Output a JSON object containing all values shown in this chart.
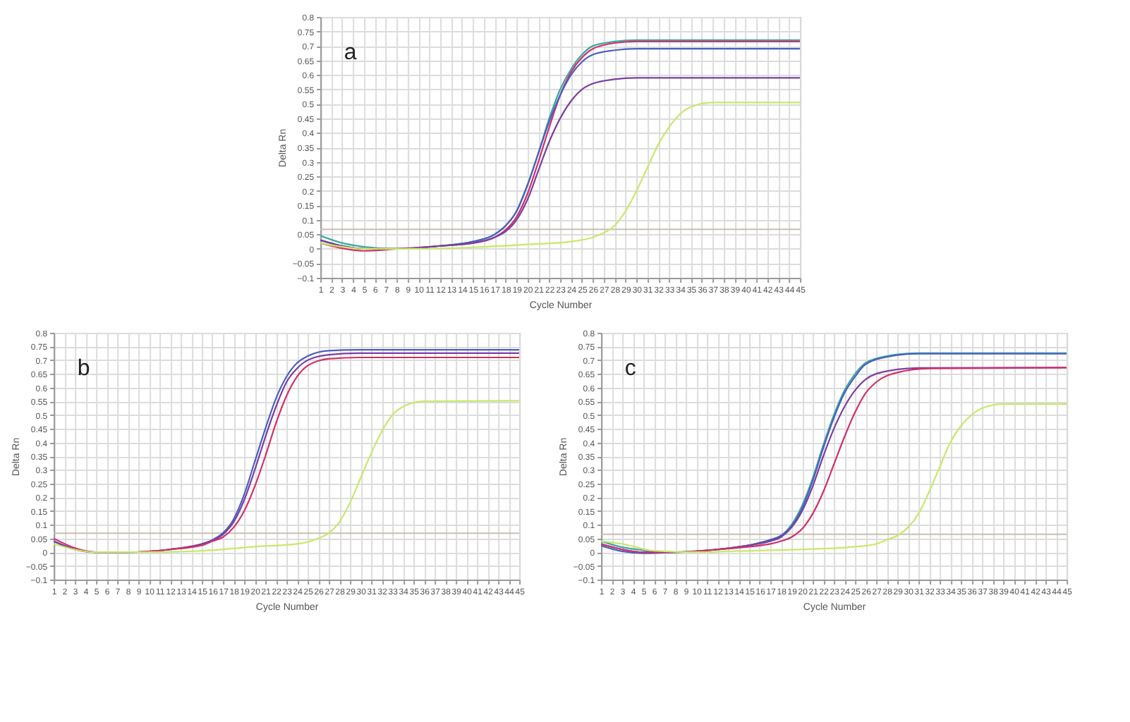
{
  "chart_data": [
    {
      "type": "line",
      "title": "a",
      "xlabel": "Cycle Number",
      "ylabel": "Delta Rn",
      "xlim": [
        1,
        45
      ],
      "ylim": [
        -0.1,
        0.8
      ],
      "xticks": [
        1,
        2,
        3,
        4,
        5,
        6,
        7,
        8,
        9,
        10,
        11,
        12,
        13,
        14,
        15,
        16,
        17,
        18,
        19,
        20,
        21,
        22,
        23,
        24,
        25,
        26,
        27,
        28,
        29,
        30,
        31,
        32,
        33,
        34,
        35,
        36,
        37,
        38,
        39,
        40,
        41,
        42,
        43,
        44,
        45
      ],
      "yticks": [
        -0.1,
        -0.05,
        0,
        0.05,
        0.1,
        0.15,
        0.2,
        0.25,
        0.3,
        0.35,
        0.4,
        0.45,
        0.5,
        0.55,
        0.6,
        0.65,
        0.7,
        0.75,
        0.8
      ],
      "grid": true,
      "marker": "none",
      "line_style": "solid",
      "ref_lines": [
        {
          "axis": "y",
          "value": 0.067,
          "color": "#c9bfb4"
        }
      ],
      "series": [
        {
          "color": "#3aa89e",
          "x": [
            1,
            3,
            5,
            8,
            12,
            15,
            17,
            18,
            19,
            20,
            21,
            22,
            23,
            24,
            25,
            26,
            28,
            30,
            45
          ],
          "values": [
            0.045,
            0.02,
            0.007,
            0,
            0.01,
            0.025,
            0.05,
            0.08,
            0.13,
            0.22,
            0.33,
            0.45,
            0.55,
            0.62,
            0.67,
            0.7,
            0.715,
            0.72,
            0.72
          ]
        },
        {
          "color": "#d0306a",
          "x": [
            1,
            3,
            5,
            8,
            12,
            15,
            17,
            18,
            19,
            20,
            21,
            22,
            23,
            24,
            25,
            26,
            28,
            30,
            45
          ],
          "values": [
            0.02,
            0.002,
            -0.007,
            0,
            0.01,
            0.02,
            0.04,
            0.065,
            0.11,
            0.19,
            0.3,
            0.42,
            0.53,
            0.61,
            0.66,
            0.69,
            0.71,
            0.715,
            0.715
          ]
        },
        {
          "color": "#4a5fc1",
          "x": [
            1,
            3,
            5,
            8,
            12,
            15,
            17,
            18,
            19,
            20,
            21,
            22,
            23,
            24,
            25,
            26,
            28,
            30,
            45
          ],
          "values": [
            0.03,
            0.01,
            0,
            0,
            0.01,
            0.025,
            0.05,
            0.08,
            0.13,
            0.22,
            0.33,
            0.44,
            0.53,
            0.6,
            0.645,
            0.67,
            0.685,
            0.69,
            0.69
          ]
        },
        {
          "color": "#7a3fa0",
          "x": [
            1,
            3,
            5,
            8,
            12,
            15,
            17,
            18,
            19,
            20,
            21,
            22,
            23,
            24,
            25,
            26,
            28,
            30,
            45
          ],
          "values": [
            0.03,
            0.01,
            0,
            0,
            0.01,
            0.02,
            0.04,
            0.06,
            0.1,
            0.17,
            0.27,
            0.37,
            0.45,
            0.51,
            0.55,
            0.57,
            0.585,
            0.59,
            0.59
          ]
        },
        {
          "color": "#c8e86a",
          "x": [
            1,
            5,
            10,
            15,
            20,
            24,
            26,
            27,
            28,
            29,
            30,
            31,
            32,
            33,
            34,
            35,
            37,
            45
          ],
          "values": [
            0.02,
            0,
            0,
            0.005,
            0.015,
            0.025,
            0.04,
            0.055,
            0.08,
            0.13,
            0.2,
            0.28,
            0.36,
            0.42,
            0.465,
            0.49,
            0.505,
            0.505
          ]
        }
      ]
    },
    {
      "type": "line",
      "title": "b",
      "xlabel": "Cycle Number",
      "ylabel": "Delta Rn",
      "xlim": [
        1,
        45
      ],
      "ylim": [
        -0.1,
        0.8
      ],
      "xticks": [
        1,
        2,
        3,
        4,
        5,
        6,
        7,
        8,
        9,
        10,
        11,
        12,
        13,
        14,
        15,
        16,
        17,
        18,
        19,
        20,
        21,
        22,
        23,
        24,
        25,
        26,
        27,
        28,
        29,
        30,
        31,
        32,
        33,
        34,
        35,
        36,
        37,
        38,
        39,
        40,
        41,
        42,
        43,
        44,
        45
      ],
      "yticks": [
        -0.1,
        -0.05,
        0,
        0.05,
        0.1,
        0.15,
        0.2,
        0.25,
        0.3,
        0.35,
        0.4,
        0.45,
        0.5,
        0.55,
        0.6,
        0.65,
        0.7,
        0.75,
        0.8
      ],
      "grid": true,
      "marker": "none",
      "line_style": "solid",
      "ref_lines": [
        {
          "axis": "y",
          "value": 0.069,
          "color": "#c9bfb4"
        }
      ],
      "series": [
        {
          "color": "#4a5fc1",
          "x": [
            1,
            3,
            5,
            8,
            12,
            15,
            16,
            17,
            18,
            19,
            20,
            21,
            22,
            23,
            24,
            25,
            27,
            30,
            45
          ],
          "values": [
            0.04,
            0.01,
            0,
            0,
            0.01,
            0.03,
            0.045,
            0.07,
            0.12,
            0.21,
            0.33,
            0.45,
            0.56,
            0.64,
            0.69,
            0.715,
            0.735,
            0.738,
            0.738
          ]
        },
        {
          "color": "#7a3fa0",
          "x": [
            1,
            3,
            5,
            8,
            12,
            15,
            16,
            17,
            18,
            19,
            20,
            21,
            22,
            23,
            24,
            25,
            27,
            30,
            45
          ],
          "values": [
            0.04,
            0.01,
            0,
            0,
            0.01,
            0.03,
            0.042,
            0.065,
            0.11,
            0.19,
            0.3,
            0.42,
            0.53,
            0.62,
            0.67,
            0.7,
            0.72,
            0.726,
            0.726
          ]
        },
        {
          "color": "#d0306a",
          "x": [
            1,
            3,
            5,
            8,
            12,
            15,
            16,
            17,
            18,
            19,
            20,
            21,
            22,
            23,
            24,
            25,
            27,
            30,
            45
          ],
          "values": [
            0.05,
            0.015,
            0,
            0,
            0.01,
            0.025,
            0.04,
            0.055,
            0.09,
            0.15,
            0.24,
            0.35,
            0.47,
            0.57,
            0.64,
            0.68,
            0.705,
            0.71,
            0.71
          ]
        },
        {
          "color": "#c8e86a",
          "x": [
            1,
            5,
            10,
            15,
            20,
            24,
            26,
            27,
            28,
            29,
            30,
            31,
            32,
            33,
            34,
            36,
            45
          ],
          "values": [
            0.03,
            0,
            0,
            0.005,
            0.02,
            0.03,
            0.05,
            0.07,
            0.11,
            0.18,
            0.27,
            0.36,
            0.44,
            0.5,
            0.53,
            0.55,
            0.552
          ]
        }
      ]
    },
    {
      "type": "line",
      "title": "c",
      "xlabel": "Cycle Number",
      "ylabel": "Delta Rn",
      "xlim": [
        1,
        45
      ],
      "ylim": [
        -0.1,
        0.8
      ],
      "xticks": [
        1,
        2,
        3,
        4,
        5,
        6,
        7,
        8,
        9,
        10,
        11,
        12,
        13,
        14,
        15,
        16,
        17,
        18,
        19,
        20,
        21,
        22,
        23,
        24,
        25,
        26,
        27,
        28,
        29,
        30,
        31,
        32,
        33,
        34,
        35,
        36,
        37,
        38,
        39,
        40,
        41,
        42,
        43,
        44,
        45
      ],
      "yticks": [
        -0.1,
        -0.05,
        0,
        0.05,
        0.1,
        0.15,
        0.2,
        0.25,
        0.3,
        0.35,
        0.4,
        0.45,
        0.5,
        0.55,
        0.6,
        0.65,
        0.7,
        0.75,
        0.8
      ],
      "grid": true,
      "marker": "none",
      "line_style": "solid",
      "ref_lines": [
        {
          "axis": "y",
          "value": 0.065,
          "color": "#c9bfb4"
        }
      ],
      "series": [
        {
          "color": "#3aa89e",
          "x": [
            1,
            3,
            5,
            8,
            12,
            15,
            17,
            18,
            19,
            20,
            21,
            22,
            23,
            24,
            25,
            26,
            28,
            31,
            45
          ],
          "values": [
            0.04,
            0.018,
            0.007,
            0,
            0.01,
            0.025,
            0.045,
            0.06,
            0.1,
            0.17,
            0.27,
            0.39,
            0.5,
            0.59,
            0.65,
            0.69,
            0.715,
            0.726,
            0.726
          ]
        },
        {
          "color": "#4a5fc1",
          "x": [
            1,
            3,
            5,
            8,
            12,
            15,
            17,
            18,
            19,
            20,
            21,
            22,
            23,
            24,
            25,
            26,
            28,
            31,
            45
          ],
          "values": [
            0.024,
            0.003,
            -0.004,
            0,
            0.01,
            0.025,
            0.045,
            0.06,
            0.095,
            0.16,
            0.26,
            0.38,
            0.49,
            0.58,
            0.64,
            0.685,
            0.712,
            0.724,
            0.724
          ]
        },
        {
          "color": "#7a3fa0",
          "x": [
            1,
            3,
            5,
            8,
            12,
            15,
            17,
            18,
            19,
            20,
            21,
            22,
            23,
            24,
            25,
            26,
            28,
            31,
            45
          ],
          "values": [
            0.03,
            0.01,
            0,
            0,
            0.01,
            0.025,
            0.04,
            0.055,
            0.09,
            0.15,
            0.24,
            0.35,
            0.45,
            0.53,
            0.59,
            0.63,
            0.66,
            0.672,
            0.673
          ]
        },
        {
          "color": "#d0306a",
          "x": [
            1,
            3,
            5,
            8,
            12,
            15,
            17,
            18,
            19,
            20,
            21,
            22,
            23,
            24,
            25,
            26,
            27,
            29,
            32,
            45
          ],
          "values": [
            0.03,
            0.01,
            0,
            0,
            0.01,
            0.02,
            0.03,
            0.04,
            0.055,
            0.085,
            0.14,
            0.22,
            0.32,
            0.42,
            0.51,
            0.58,
            0.62,
            0.655,
            0.67,
            0.673
          ]
        },
        {
          "color": "#c8e86a",
          "x": [
            1,
            3,
            6,
            10,
            15,
            20,
            25,
            27,
            28,
            29,
            30,
            31,
            32,
            33,
            34,
            35,
            36,
            37,
            39,
            45
          ],
          "values": [
            0.04,
            0.03,
            0.005,
            0,
            0.005,
            0.01,
            0.02,
            0.03,
            0.045,
            0.06,
            0.09,
            0.14,
            0.22,
            0.31,
            0.4,
            0.46,
            0.5,
            0.525,
            0.54,
            0.54
          ]
        }
      ]
    }
  ]
}
